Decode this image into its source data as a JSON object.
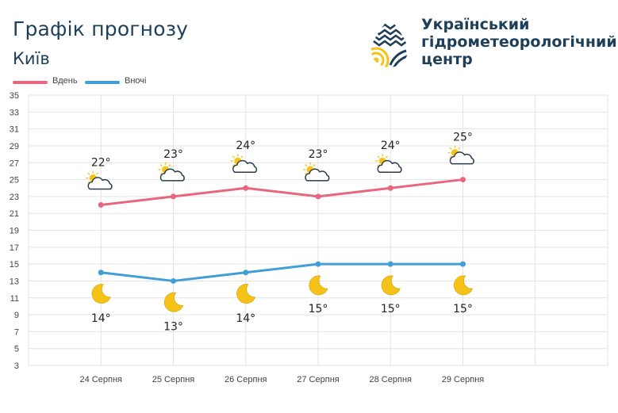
{
  "header": {
    "title": "Графік прогнозу",
    "city": "Київ"
  },
  "organization": {
    "name_lines": [
      "Український",
      "гідрометеорологічний",
      "центр"
    ]
  },
  "colors": {
    "day": "#e8677f",
    "night": "#3f9fd6",
    "grid": "#e3e3e3",
    "text_dark": "#1e3f5a",
    "logo_blue": "#1e3f5a",
    "logo_yellow": "#f5c218"
  },
  "chart_data": {
    "type": "line",
    "title": "Графік прогнозу",
    "subtitle": "Київ",
    "categories": [
      "24 Серпня",
      "25 Серпня",
      "26 Серпня",
      "27 Серпня",
      "28 Серпня",
      "29 Серпня"
    ],
    "series": [
      {
        "name": "Вдень",
        "values": [
          22,
          23,
          24,
          23,
          24,
          25
        ],
        "labels": [
          "22°",
          "23°",
          "24°",
          "23°",
          "24°",
          "25°"
        ],
        "icon": "partly-cloudy-icon"
      },
      {
        "name": "Вночі",
        "values": [
          14,
          13,
          14,
          15,
          15,
          15
        ],
        "labels": [
          "14°",
          "13°",
          "14°",
          "15°",
          "15°",
          "15°"
        ],
        "icon": "crescent-moon-icon"
      }
    ],
    "y_ticks": [
      "35",
      "33",
      "31",
      "29",
      "27",
      "25",
      "23",
      "21",
      "19",
      "17",
      "15",
      "13",
      "11",
      "9",
      "7",
      "5",
      "3"
    ],
    "ylim": [
      3,
      35
    ],
    "grid": true,
    "legend_position": "top-left"
  }
}
